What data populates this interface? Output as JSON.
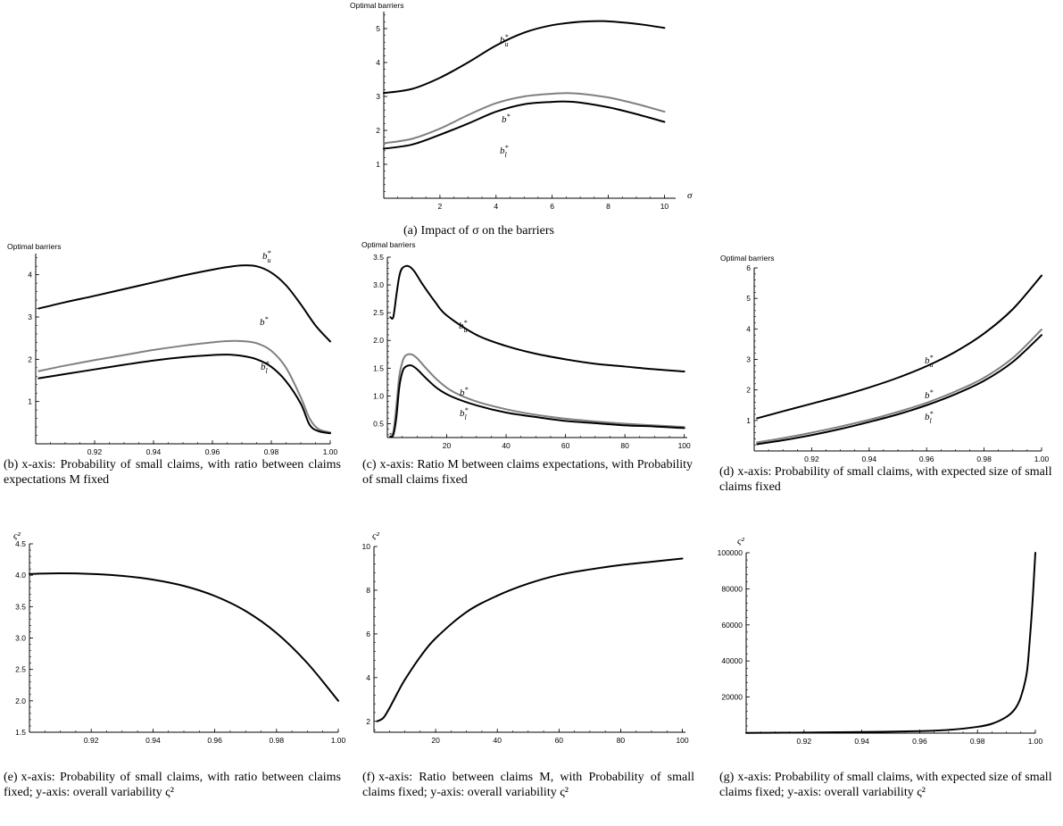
{
  "captions": {
    "a": {
      "tag": "(a)",
      "text": "Impact of σ on the barriers"
    },
    "b": {
      "tag": "(b)",
      "text": "x-axis: Probability of small claims, with ratio between claims expectations M fixed"
    },
    "c": {
      "tag": "(c)",
      "text": "x-axis: Ratio M between claims expectations, with Probability of small claims fixed"
    },
    "d": {
      "tag": "(d)",
      "text": "x-axis: Probability of small claims, with expected size of small claims fixed"
    },
    "e": {
      "tag": "(e)",
      "text": "x-axis: Probability of small claims, with ratio between claims fixed; y-axis: overall variability ς²"
    },
    "f": {
      "tag": "(f)",
      "text": "x-axis: Ratio between claims M, with Probability of small claims fixed; y-axis: overall variability ς²"
    },
    "g": {
      "tag": "(g)",
      "text": "x-axis: Probability of small claims, with expected size of small claims fixed; y-axis: overall variability ς²"
    }
  },
  "chart_data": [
    {
      "id": "a",
      "type": "line",
      "title": "",
      "ylabel": "Optimal barriers",
      "xlabel": "σ",
      "xlim": [
        0,
        10.4
      ],
      "ylim": [
        0,
        5.5
      ],
      "xticks": [
        2,
        4,
        6,
        8,
        10
      ],
      "yticks": [
        1,
        2,
        3,
        4,
        5
      ],
      "series": [
        {
          "name": "b_u*",
          "color": "#000000",
          "x": [
            0,
            1,
            2,
            3,
            4,
            5,
            6,
            7,
            7.8,
            8.5,
            9.2,
            10
          ],
          "y": [
            3.1,
            3.22,
            3.55,
            4.0,
            4.5,
            4.88,
            5.1,
            5.2,
            5.22,
            5.18,
            5.12,
            5.02
          ]
        },
        {
          "name": "b*",
          "color": "#808080",
          "x": [
            0,
            1,
            2,
            3,
            4,
            5,
            6,
            6.5,
            7,
            8,
            9,
            10
          ],
          "y": [
            1.62,
            1.75,
            2.05,
            2.45,
            2.8,
            3.0,
            3.08,
            3.1,
            3.08,
            2.97,
            2.78,
            2.55
          ]
        },
        {
          "name": "b_l*",
          "color": "#000000",
          "x": [
            0,
            1,
            2,
            3,
            4,
            5,
            6,
            6.5,
            7,
            8,
            9,
            10
          ],
          "y": [
            1.46,
            1.58,
            1.87,
            2.2,
            2.55,
            2.77,
            2.84,
            2.85,
            2.82,
            2.68,
            2.48,
            2.25
          ]
        }
      ]
    },
    {
      "id": "b",
      "type": "line",
      "title": "",
      "ylabel": "Optimal barriers",
      "xlabel": "",
      "xlim": [
        0.9,
        1.0
      ],
      "ylim": [
        0,
        4.5
      ],
      "xticks": [
        0.92,
        0.94,
        0.96,
        0.98,
        1.0
      ],
      "yticks": [
        1,
        2,
        3,
        4
      ],
      "series": [
        {
          "name": "b_u*",
          "color": "#000000",
          "x": [
            0.901,
            0.91,
            0.92,
            0.93,
            0.94,
            0.95,
            0.96,
            0.965,
            0.97,
            0.975,
            0.98,
            0.985,
            0.99,
            0.995,
            1.0
          ],
          "y": [
            3.2,
            3.35,
            3.5,
            3.66,
            3.82,
            3.98,
            4.12,
            4.18,
            4.22,
            4.2,
            4.05,
            3.75,
            3.3,
            2.8,
            2.42
          ]
        },
        {
          "name": "b*",
          "color": "#808080",
          "x": [
            0.901,
            0.91,
            0.92,
            0.93,
            0.94,
            0.95,
            0.96,
            0.965,
            0.97,
            0.975,
            0.98,
            0.985,
            0.99,
            0.993,
            0.996,
            1.0
          ],
          "y": [
            1.72,
            1.85,
            1.98,
            2.1,
            2.22,
            2.32,
            2.4,
            2.43,
            2.43,
            2.38,
            2.2,
            1.8,
            1.1,
            0.6,
            0.35,
            0.27
          ]
        },
        {
          "name": "b_l*",
          "color": "#000000",
          "x": [
            0.901,
            0.91,
            0.92,
            0.93,
            0.94,
            0.95,
            0.96,
            0.965,
            0.97,
            0.975,
            0.98,
            0.985,
            0.99,
            0.993,
            0.996,
            1.0
          ],
          "y": [
            1.55,
            1.65,
            1.76,
            1.87,
            1.97,
            2.05,
            2.1,
            2.11,
            2.08,
            2.0,
            1.82,
            1.48,
            0.95,
            0.45,
            0.3,
            0.25
          ]
        }
      ]
    },
    {
      "id": "c",
      "type": "line",
      "title": "",
      "ylabel": "Optimal barriers",
      "xlabel": "",
      "xlim": [
        0,
        101
      ],
      "ylim": [
        0.25,
        3.5
      ],
      "xticks": [
        20,
        40,
        60,
        80,
        100
      ],
      "yticks": [
        0.5,
        1.0,
        1.5,
        2.0,
        2.5,
        3.0,
        3.5
      ],
      "series": [
        {
          "name": "b_u*",
          "color": "#000000",
          "x": [
            1,
            2,
            3,
            4,
            5,
            7,
            9,
            12,
            16,
            20,
            30,
            40,
            50,
            60,
            70,
            80,
            90,
            100
          ],
          "y": [
            2.42,
            2.42,
            2.8,
            3.15,
            3.3,
            3.34,
            3.25,
            3.0,
            2.7,
            2.45,
            2.1,
            1.9,
            1.76,
            1.66,
            1.58,
            1.53,
            1.48,
            1.44
          ]
        },
        {
          "name": "b*",
          "color": "#808080",
          "x": [
            1,
            2,
            3,
            4,
            5,
            6,
            8,
            10,
            13,
            17,
            22,
            30,
            40,
            50,
            60,
            70,
            80,
            90,
            100
          ],
          "y": [
            0.32,
            0.35,
            0.8,
            1.35,
            1.6,
            1.72,
            1.75,
            1.68,
            1.5,
            1.28,
            1.08,
            0.9,
            0.76,
            0.66,
            0.59,
            0.54,
            0.5,
            0.47,
            0.44
          ]
        },
        {
          "name": "b_l*",
          "color": "#000000",
          "x": [
            1,
            2,
            3,
            4,
            5,
            6,
            8,
            10,
            13,
            17,
            22,
            30,
            40,
            50,
            60,
            70,
            80,
            90,
            100
          ],
          "y": [
            0.27,
            0.3,
            0.6,
            1.15,
            1.42,
            1.52,
            1.55,
            1.48,
            1.32,
            1.13,
            0.98,
            0.83,
            0.7,
            0.62,
            0.55,
            0.51,
            0.47,
            0.45,
            0.42
          ]
        }
      ]
    },
    {
      "id": "d",
      "type": "line",
      "title": "",
      "ylabel": "Optimal barriers",
      "xlabel": "",
      "xlim": [
        0.9,
        1.0
      ],
      "ylim": [
        0,
        6
      ],
      "xticks": [
        0.92,
        0.94,
        0.96,
        0.98,
        1.0
      ],
      "yticks": [
        1,
        2,
        3,
        4,
        5,
        6
      ],
      "series": [
        {
          "name": "b_u*",
          "color": "#000000",
          "x": [
            0.901,
            0.91,
            0.92,
            0.93,
            0.94,
            0.95,
            0.96,
            0.97,
            0.98,
            0.99,
            1.0
          ],
          "y": [
            1.07,
            1.3,
            1.55,
            1.8,
            2.08,
            2.4,
            2.78,
            3.25,
            3.85,
            4.65,
            5.75
          ]
        },
        {
          "name": "b*",
          "color": "#808080",
          "x": [
            0.901,
            0.91,
            0.92,
            0.93,
            0.94,
            0.95,
            0.96,
            0.97,
            0.98,
            0.99,
            1.0
          ],
          "y": [
            0.28,
            0.42,
            0.6,
            0.8,
            1.02,
            1.28,
            1.58,
            1.95,
            2.4,
            3.05,
            3.98
          ]
        },
        {
          "name": "b_l*",
          "color": "#000000",
          "x": [
            0.901,
            0.91,
            0.92,
            0.93,
            0.94,
            0.95,
            0.96,
            0.97,
            0.98,
            0.99,
            1.0
          ],
          "y": [
            0.22,
            0.35,
            0.52,
            0.72,
            0.95,
            1.2,
            1.5,
            1.86,
            2.3,
            2.92,
            3.8
          ]
        }
      ]
    },
    {
      "id": "e",
      "type": "line",
      "title": "",
      "ylabel": "ς²",
      "xlabel": "",
      "xlim": [
        0.9,
        1.0
      ],
      "ylim": [
        1.5,
        4.5
      ],
      "xticks": [
        0.92,
        0.94,
        0.96,
        0.98,
        1.0
      ],
      "yticks": [
        1.5,
        2.0,
        2.5,
        3.0,
        3.5,
        4.0,
        4.5
      ],
      "series": [
        {
          "name": "",
          "color": "#000000",
          "x": [
            0.9,
            0.91,
            0.92,
            0.93,
            0.94,
            0.95,
            0.96,
            0.97,
            0.98,
            0.99,
            1.0
          ],
          "y": [
            4.02,
            4.03,
            4.02,
            3.99,
            3.93,
            3.83,
            3.67,
            3.43,
            3.08,
            2.6,
            2.0
          ]
        }
      ]
    },
    {
      "id": "f",
      "type": "line",
      "title": "",
      "ylabel": "ς²",
      "xlabel": "",
      "xlim": [
        0,
        101
      ],
      "ylim": [
        1.5,
        10
      ],
      "xticks": [
        20,
        40,
        60,
        80,
        100
      ],
      "yticks": [
        2,
        4,
        6,
        8,
        10
      ],
      "series": [
        {
          "name": "",
          "color": "#000000",
          "x": [
            1,
            3,
            5,
            8,
            10,
            15,
            20,
            30,
            40,
            50,
            60,
            70,
            80,
            90,
            100
          ],
          "y": [
            2.0,
            2.15,
            2.6,
            3.4,
            3.9,
            4.95,
            5.8,
            7.0,
            7.75,
            8.3,
            8.7,
            8.95,
            9.15,
            9.3,
            9.45
          ]
        }
      ]
    },
    {
      "id": "g",
      "type": "line",
      "title": "",
      "ylabel": "ς²",
      "xlabel": "",
      "xlim": [
        0.9,
        1.0
      ],
      "ylim": [
        0,
        100000
      ],
      "xticks": [
        0.92,
        0.94,
        0.96,
        0.98,
        1.0
      ],
      "yticks": [
        20000,
        40000,
        60000,
        80000,
        100000
      ],
      "series": [
        {
          "name": "",
          "color": "#000000",
          "x": [
            0.9,
            0.92,
            0.94,
            0.96,
            0.97,
            0.98,
            0.985,
            0.99,
            0.993,
            0.995,
            0.997,
            0.998,
            0.999,
            1.0
          ],
          "y": [
            100,
            300,
            600,
            1100,
            1800,
            3500,
            5200,
            9000,
            13500,
            20000,
            33000,
            50000,
            72000,
            100000
          ]
        }
      ]
    }
  ]
}
